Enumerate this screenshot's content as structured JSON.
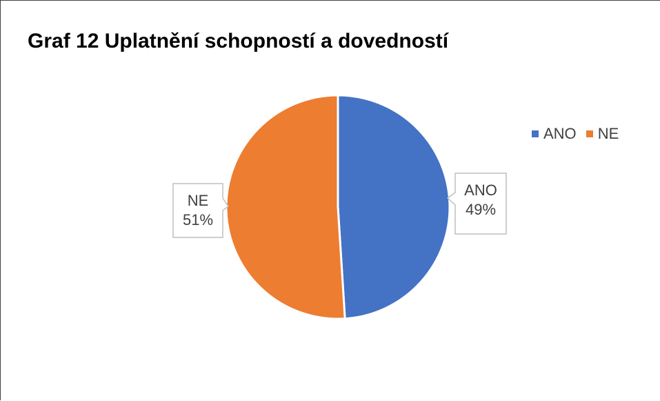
{
  "chart_data": {
    "type": "pie",
    "title": "Graf 12 Uplatnění schopností a dovedností",
    "categories": [
      "ANO",
      "NE"
    ],
    "values": [
      49,
      51
    ],
    "colors": [
      "#4472C4",
      "#ED7D31"
    ],
    "data_labels": [
      {
        "category": "ANO",
        "value": "49%"
      },
      {
        "category": "NE",
        "value": "51%"
      }
    ],
    "legend": {
      "position": "top-right",
      "entries": [
        {
          "label": "ANO",
          "color": "#4472C4"
        },
        {
          "label": "NE",
          "color": "#ED7D31"
        }
      ]
    }
  }
}
